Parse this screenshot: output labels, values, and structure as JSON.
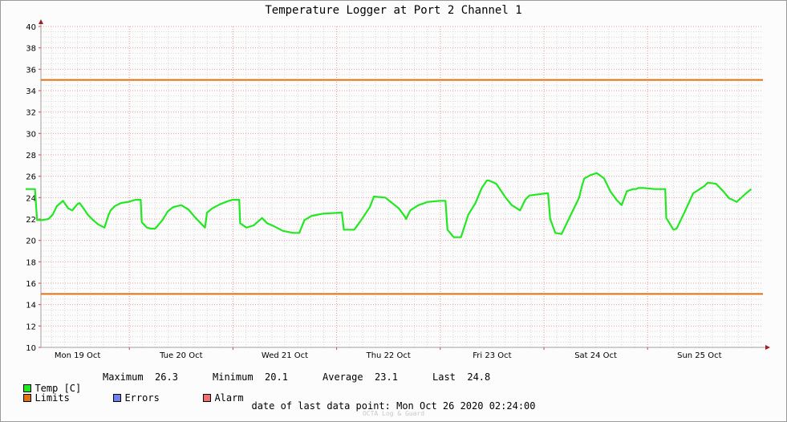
{
  "title": "Temperature Logger at Port 2 Channel 1",
  "colors": {
    "temp": "#22e822",
    "limits": "#e07010",
    "errors": "#6f80f0",
    "alarm": "#f07070",
    "grid_major": "#e8a0a0",
    "grid_minor": "#d8d8d8",
    "axis": "#a0a0a0"
  },
  "legend": {
    "temp_label": "Temp [C]",
    "maximum_label": "Maximum",
    "maximum_value": "26.3",
    "minimum_label": "Minimum",
    "minimum_value": "20.1",
    "average_label": "Average",
    "average_value": "23.1",
    "last_label": "Last",
    "last_value": "24.8",
    "limits_label": "Limits",
    "errors_label": "Errors",
    "alarm_label": "Alarm"
  },
  "footer": {
    "prefix": "date of last data point:",
    "value": "Mon Oct 26 2020 02:24:00"
  },
  "watermark": "OCTA Log & Guard",
  "chart_data": {
    "type": "line",
    "title": "Temperature Logger at Port 2 Channel 1",
    "y_ticks": [
      10,
      12,
      14,
      16,
      18,
      20,
      22,
      24,
      26,
      28,
      30,
      32,
      34,
      36,
      38,
      40
    ],
    "ylim": [
      10,
      40
    ],
    "xlim": [
      0,
      7
    ],
    "x_unit": "days since Mon 19 Oct 00:00",
    "x_ticks": [
      {
        "label": "Mon 19 Oct",
        "x": 0.5
      },
      {
        "label": "Tue 20 Oct",
        "x": 1.5
      },
      {
        "label": "Wed 21 Oct",
        "x": 2.5
      },
      {
        "label": "Thu 22 Oct",
        "x": 3.5
      },
      {
        "label": "Fri 23 Oct",
        "x": 4.5
      },
      {
        "label": "Sat 24 Oct",
        "x": 5.5
      },
      {
        "label": "Sun 25 Oct",
        "x": 6.5
      }
    ],
    "limits": [
      35,
      15
    ],
    "grid": true,
    "series": [
      {
        "name": "Temp [C]",
        "x": [
          0.0,
          0.09,
          0.11,
          0.16,
          0.22,
          0.26,
          0.3,
          0.36,
          0.41,
          0.45,
          0.5,
          0.52,
          0.55,
          0.6,
          0.65,
          0.7,
          0.76,
          0.8,
          0.82,
          0.86,
          0.92,
          0.99,
          1.06,
          1.11,
          1.12,
          1.17,
          1.21,
          1.25,
          1.32,
          1.37,
          1.42,
          1.5,
          1.57,
          1.63,
          1.73,
          1.75,
          1.8,
          1.88,
          1.96,
          2.0,
          2.06,
          2.07,
          2.13,
          2.2,
          2.28,
          2.33,
          2.4,
          2.48,
          2.58,
          2.64,
          2.69,
          2.76,
          2.87,
          3.05,
          3.07,
          3.11,
          3.17,
          3.23,
          3.32,
          3.36,
          3.47,
          3.6,
          3.66,
          3.67,
          3.71,
          3.79,
          3.88,
          4.0,
          4.05,
          4.07,
          4.13,
          4.2,
          4.27,
          4.34,
          4.4,
          4.45,
          4.47,
          4.54,
          4.63,
          4.69,
          4.77,
          4.82,
          4.86,
          5.02,
          5.04,
          5.06,
          5.11,
          5.17,
          5.24,
          5.34,
          5.37,
          5.39,
          5.45,
          5.51,
          5.58,
          5.64,
          5.7,
          5.75,
          5.8,
          5.86,
          5.89,
          5.91,
          5.96,
          6.07,
          6.17,
          6.18,
          6.25,
          6.28,
          6.36,
          6.44,
          6.55,
          6.58,
          6.66,
          6.73,
          6.79,
          6.8,
          6.86,
          6.95,
          7.0
        ],
        "y": [
          24.8,
          24.8,
          21.9,
          21.9,
          22.0,
          22.4,
          23.2,
          23.7,
          23.0,
          22.8,
          23.4,
          23.5,
          23.1,
          22.4,
          21.9,
          21.5,
          21.2,
          22.4,
          22.8,
          23.2,
          23.5,
          23.6,
          23.8,
          23.8,
          21.7,
          21.2,
          21.1,
          21.1,
          21.9,
          22.7,
          23.1,
          23.3,
          22.9,
          22.2,
          21.2,
          22.6,
          23.0,
          23.4,
          23.7,
          23.8,
          23.8,
          21.6,
          21.2,
          21.4,
          22.1,
          21.6,
          21.3,
          20.9,
          20.7,
          20.7,
          21.9,
          22.3,
          22.5,
          22.6,
          21.0,
          21.0,
          21.0,
          21.8,
          23.1,
          24.1,
          24.0,
          23.0,
          22.2,
          22.0,
          22.8,
          23.3,
          23.6,
          23.7,
          23.7,
          21.0,
          20.3,
          20.3,
          22.4,
          23.5,
          24.9,
          25.6,
          25.6,
          25.3,
          24.0,
          23.3,
          22.8,
          23.8,
          24.2,
          24.4,
          24.4,
          22.0,
          20.7,
          20.6,
          22.0,
          24.0,
          25.2,
          25.8,
          26.1,
          26.3,
          25.8,
          24.6,
          23.8,
          23.3,
          24.6,
          24.8,
          24.8,
          24.9,
          24.9,
          24.8,
          24.8,
          22.1,
          21.0,
          21.1,
          22.7,
          24.4,
          25.1,
          25.4,
          25.3,
          24.6,
          23.9,
          23.9,
          23.6,
          24.4,
          24.8
        ]
      }
    ]
  }
}
